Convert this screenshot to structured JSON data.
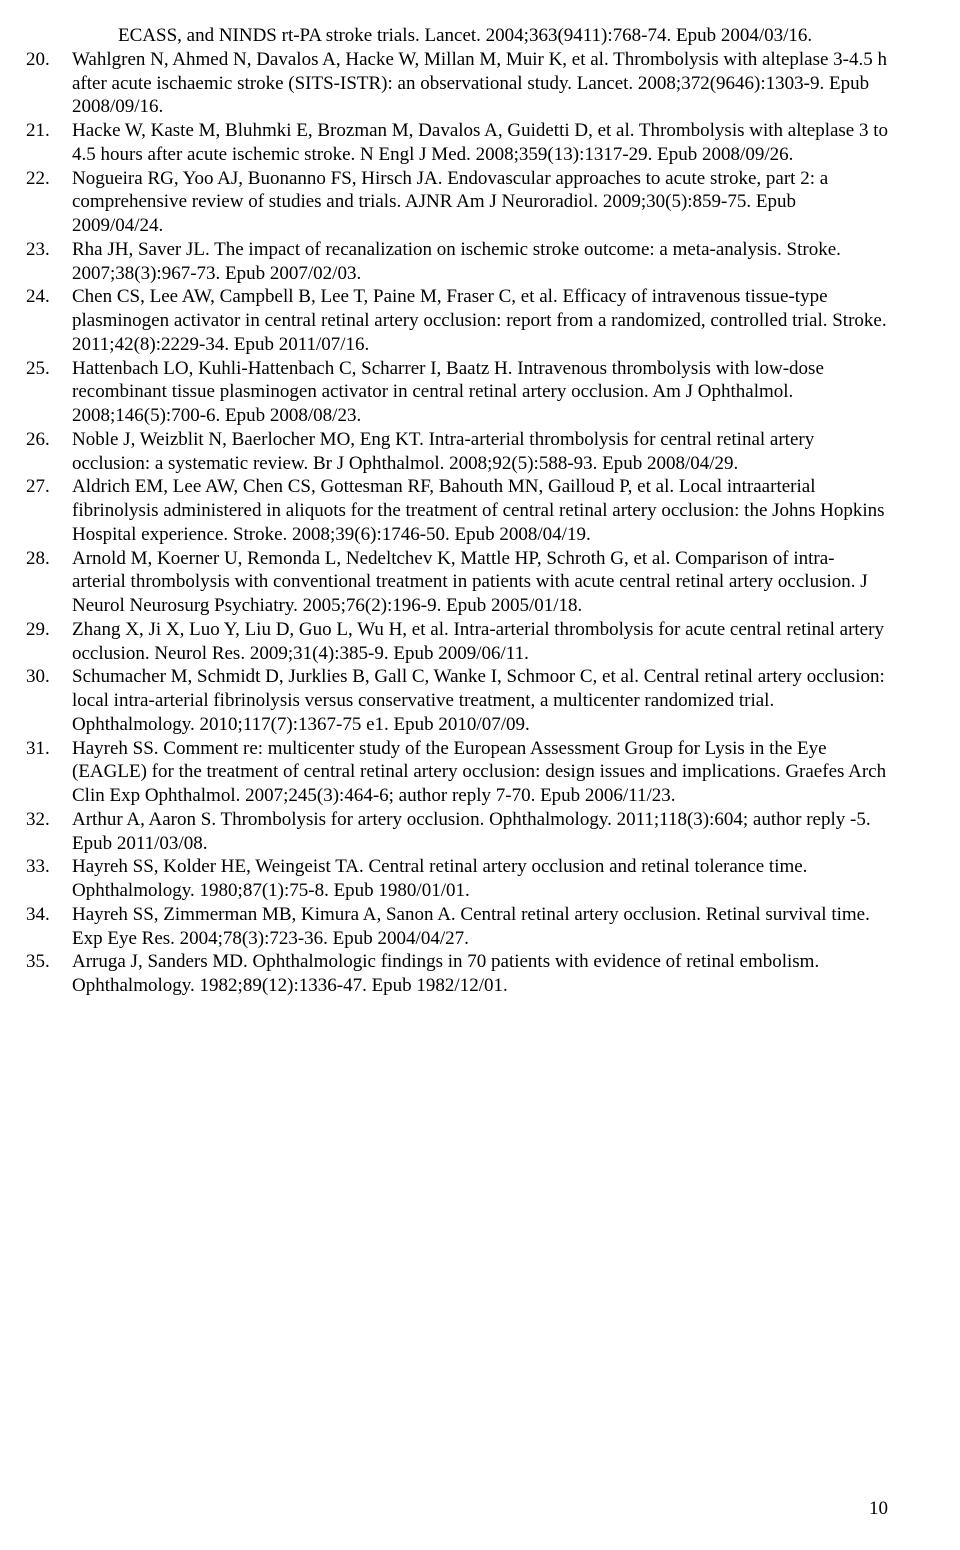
{
  "page_number": "10",
  "first_continued": "ECASS, and NINDS rt-PA stroke trials. Lancet. 2004;363(9411):768-74. Epub 2004/03/16.",
  "references": [
    {
      "n": "20.",
      "t": "Wahlgren N, Ahmed N, Davalos A, Hacke W, Millan M, Muir K, et al. Thrombolysis with alteplase 3-4.5 h after acute ischaemic stroke (SITS-ISTR): an observational study. Lancet. 2008;372(9646):1303-9. Epub 2008/09/16."
    },
    {
      "n": "21.",
      "t": "Hacke W, Kaste M, Bluhmki E, Brozman M, Davalos A, Guidetti D, et al. Thrombolysis with alteplase 3 to 4.5 hours after acute ischemic stroke. N Engl J Med. 2008;359(13):1317-29. Epub 2008/09/26."
    },
    {
      "n": "22.",
      "t": "Nogueira RG, Yoo AJ, Buonanno FS, Hirsch JA. Endovascular approaches to acute stroke, part 2: a comprehensive review of studies and trials. AJNR Am J Neuroradiol. 2009;30(5):859-75. Epub 2009/04/24."
    },
    {
      "n": "23.",
      "t": "Rha JH, Saver JL. The impact of recanalization on ischemic stroke outcome: a meta-analysis. Stroke. 2007;38(3):967-73. Epub 2007/02/03."
    },
    {
      "n": "24.",
      "t": "Chen CS, Lee AW, Campbell B, Lee T, Paine M, Fraser C, et al. Efficacy of intravenous tissue-type plasminogen activator in central retinal artery occlusion: report from a randomized, controlled trial. Stroke. 2011;42(8):2229-34. Epub 2011/07/16."
    },
    {
      "n": "25.",
      "t": "Hattenbach LO, Kuhli-Hattenbach C, Scharrer I, Baatz H. Intravenous thrombolysis with low-dose recombinant tissue plasminogen activator in central retinal artery occlusion. Am J Ophthalmol. 2008;146(5):700-6. Epub 2008/08/23."
    },
    {
      "n": "26.",
      "t": "Noble J, Weizblit N, Baerlocher MO, Eng KT. Intra-arterial thrombolysis for central retinal artery occlusion: a systematic review. Br J Ophthalmol. 2008;92(5):588-93. Epub 2008/04/29."
    },
    {
      "n": "27.",
      "t": "Aldrich EM, Lee AW, Chen CS, Gottesman RF, Bahouth MN, Gailloud P, et al. Local intraarterial fibrinolysis administered in aliquots for the treatment of central retinal artery occlusion: the Johns Hopkins Hospital experience. Stroke. 2008;39(6):1746-50. Epub 2008/04/19."
    },
    {
      "n": "28.",
      "t": "Arnold M, Koerner U, Remonda L, Nedeltchev K, Mattle HP, Schroth G, et al. Comparison of intra-arterial thrombolysis with conventional treatment in patients with acute central retinal artery occlusion. J Neurol Neurosurg Psychiatry. 2005;76(2):196-9. Epub 2005/01/18."
    },
    {
      "n": "29.",
      "t": "Zhang X, Ji X, Luo Y, Liu D, Guo L, Wu H, et al. Intra-arterial thrombolysis for acute central retinal artery occlusion. Neurol Res. 2009;31(4):385-9. Epub 2009/06/11."
    },
    {
      "n": "30.",
      "t": "Schumacher M, Schmidt D, Jurklies B, Gall C, Wanke I, Schmoor C, et al. Central retinal artery occlusion: local intra-arterial fibrinolysis versus conservative treatment, a multicenter randomized trial. Ophthalmology. 2010;117(7):1367-75 e1. Epub 2010/07/09."
    },
    {
      "n": "31.",
      "t": "Hayreh SS. Comment re: multicenter study of the European Assessment Group for Lysis in the Eye (EAGLE) for the treatment of central retinal artery occlusion: design issues and implications. Graefes Arch Clin Exp Ophthalmol. 2007;245(3):464-6; author reply 7-70. Epub 2006/11/23."
    },
    {
      "n": "32.",
      "t": "Arthur A, Aaron S. Thrombolysis for artery occlusion. Ophthalmology. 2011;118(3):604; author reply -5. Epub 2011/03/08."
    },
    {
      "n": "33.",
      "t": "Hayreh SS, Kolder HE, Weingeist TA. Central retinal artery occlusion and retinal tolerance time. Ophthalmology. 1980;87(1):75-8. Epub 1980/01/01."
    },
    {
      "n": "34.",
      "t": "Hayreh SS, Zimmerman MB, Kimura A, Sanon A. Central retinal artery occlusion. Retinal survival time. Exp Eye Res. 2004;78(3):723-36. Epub 2004/04/27."
    },
    {
      "n": "35.",
      "t": "Arruga J, Sanders MD. Ophthalmologic findings in 70 patients with evidence of retinal embolism. Ophthalmology. 1982;89(12):1336-47. Epub 1982/12/01."
    }
  ]
}
